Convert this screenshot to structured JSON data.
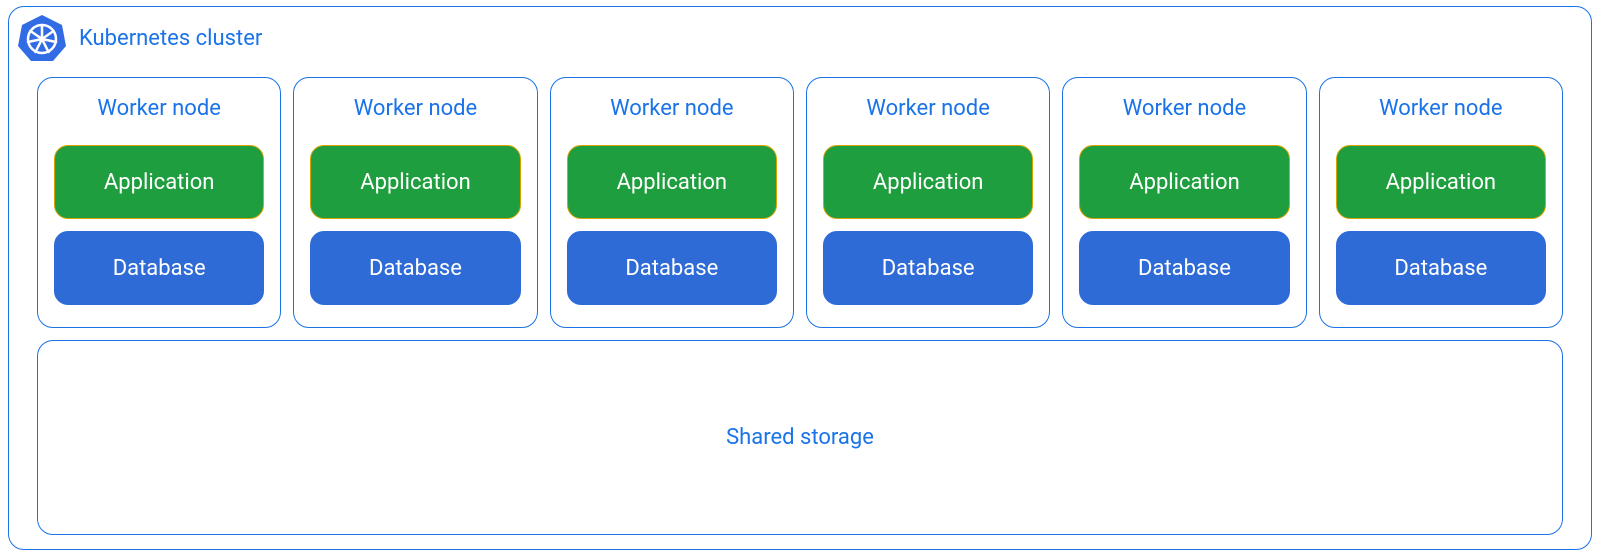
{
  "diagram": {
    "type": "infographic",
    "background_color": "#ffffff",
    "cluster": {
      "title": "Kubernetes cluster",
      "border_color": "#1a73e8",
      "text_color": "#1a73e8",
      "border_radius": 16,
      "icon_bg": "#326ce5",
      "icon_fg": "#ffffff",
      "title_fontsize": 22
    },
    "worker_node": {
      "title": "Worker node",
      "border_color": "#1a73e8",
      "text_color": "#1a73e8",
      "title_fontsize": 22,
      "border_radius": 16,
      "count": 6
    },
    "pods": {
      "application": {
        "label": "Application",
        "fill": "#1e9e3e",
        "border": "#d9a400",
        "text_color": "#ffffff",
        "border_radius": 14,
        "height": 74,
        "fontsize": 22
      },
      "database": {
        "label": "Database",
        "fill": "#2f6bd6",
        "border": "#2f6bd6",
        "text_color": "#ffffff",
        "border_radius": 14,
        "height": 74,
        "fontsize": 22
      }
    },
    "storage": {
      "label": "Shared storage",
      "border_color": "#1a73e8",
      "text_color": "#1a73e8",
      "border_radius": 16,
      "fontsize": 22
    }
  }
}
